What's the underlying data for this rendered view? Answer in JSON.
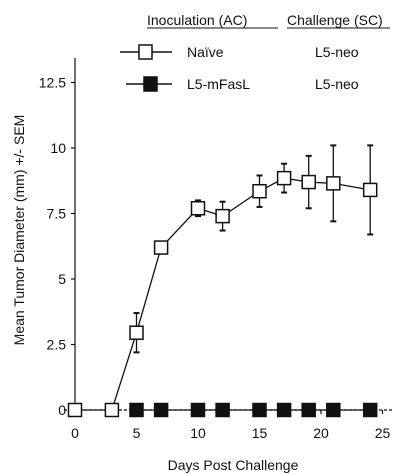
{
  "chart_data": {
    "type": "line",
    "xlabel": "Days Post Challenge",
    "ylabel": "Mean Tumor Diameter (mm) +/- SEM",
    "xlim": [
      0,
      26
    ],
    "ylim": [
      0,
      12.5
    ],
    "x_ticks": [
      "0",
      "5",
      "10",
      "15",
      "20",
      "25"
    ],
    "y_ticks": [
      "0",
      "2.5",
      "5",
      "7.5",
      "10",
      "12.5"
    ],
    "grid": false,
    "legend": {
      "placement": "top",
      "headers": [
        "Inoculation (AC)",
        "Challenge (SC)"
      ]
    },
    "series": [
      {
        "name": "Naïve",
        "challenge": "L5-neo",
        "marker": "open-square",
        "x": [
          0,
          3,
          5,
          7,
          10,
          12,
          15,
          17,
          19,
          21,
          24
        ],
        "y": [
          0,
          0,
          2.95,
          6.2,
          7.7,
          7.4,
          8.35,
          8.85,
          8.7,
          8.65,
          8.4
        ],
        "err": [
          0,
          0,
          0.75,
          0,
          0.3,
          0.55,
          0.6,
          0.55,
          1.0,
          1.45,
          1.7
        ]
      },
      {
        "name": "L5-mFasL",
        "challenge": "L5-neo",
        "marker": "filled-square",
        "x": [
          5,
          7,
          10,
          12,
          15,
          17,
          19,
          21,
          24
        ],
        "y": [
          0,
          0,
          0,
          0,
          0,
          0,
          0,
          0,
          0
        ],
        "err": [
          0,
          0,
          0,
          0,
          0,
          0,
          0,
          0,
          0
        ]
      }
    ]
  }
}
